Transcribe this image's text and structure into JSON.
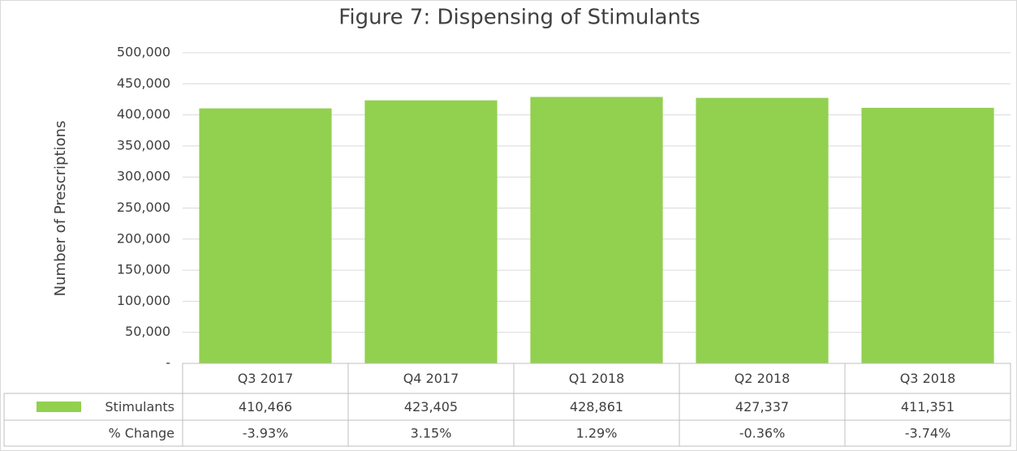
{
  "chart_data": {
    "type": "bar",
    "title": "Figure 7: Dispensing of Stimulants",
    "y_label": "Number of Prescriptions",
    "categories": [
      "Q3 2017",
      "Q4 2017",
      "Q1 2018",
      "Q2 2018",
      "Q3 2018"
    ],
    "series": [
      {
        "name": "Stimulants",
        "color": "#92d050",
        "values": [
          410466,
          423405,
          428861,
          427337,
          411351
        ],
        "value_labels": [
          "410,466",
          "423,405",
          "428,861",
          "427,337",
          "411,351"
        ]
      }
    ],
    "table_rows": [
      {
        "name": "% Change",
        "cells": [
          "-3.93%",
          "3.15%",
          "1.29%",
          "-0.36%",
          "-3.74%"
        ]
      }
    ],
    "ylim": [
      0,
      500000
    ],
    "yticks": [
      {
        "value": 0,
        "label": "-"
      },
      {
        "value": 50000,
        "label": "50,000"
      },
      {
        "value": 100000,
        "label": "100,000"
      },
      {
        "value": 150000,
        "label": "150,000"
      },
      {
        "value": 200000,
        "label": "200,000"
      },
      {
        "value": 250000,
        "label": "250,000"
      },
      {
        "value": 300000,
        "label": "300,000"
      },
      {
        "value": 350000,
        "label": "350,000"
      },
      {
        "value": 400000,
        "label": "400,000"
      },
      {
        "value": 450000,
        "label": "450,000"
      },
      {
        "value": 500000,
        "label": "500,000"
      }
    ],
    "grid": true
  }
}
